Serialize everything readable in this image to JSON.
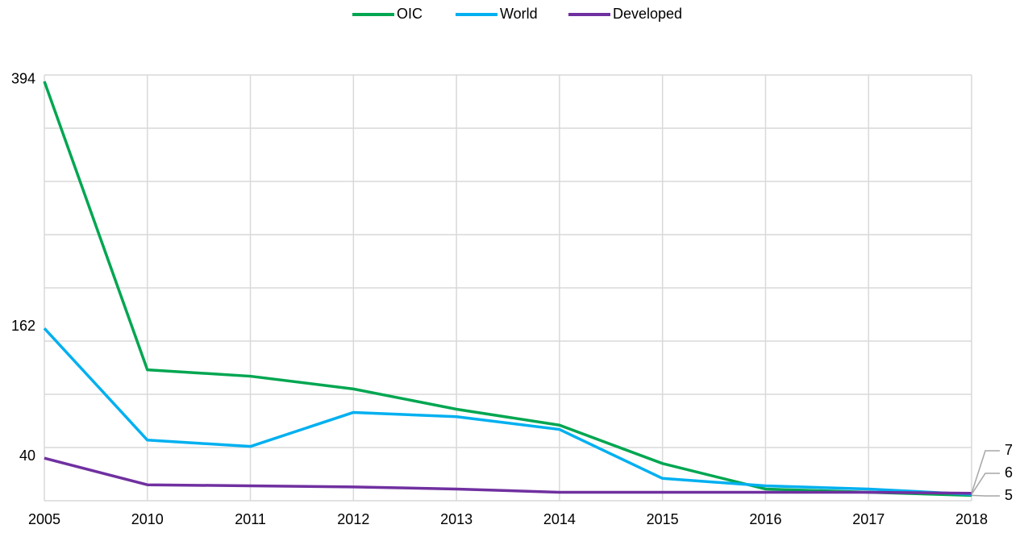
{
  "chart_data": {
    "type": "line",
    "categories": [
      "2005",
      "2010",
      "2011",
      "2012",
      "2013",
      "2014",
      "2015",
      "2016",
      "2017",
      "2018"
    ],
    "series": [
      {
        "name": "OIC",
        "color": "#00a651",
        "values": [
          394,
          123,
          117,
          105,
          86,
          71,
          35,
          11,
          8,
          5
        ]
      },
      {
        "name": "World",
        "color": "#00b0f0",
        "values": [
          162,
          57,
          51,
          83,
          79,
          67,
          21,
          14,
          11,
          6
        ]
      },
      {
        "name": "Developed",
        "color": "#7030a0",
        "values": [
          40,
          15,
          14,
          13,
          11,
          8,
          8,
          8,
          8,
          7
        ]
      }
    ],
    "ylim": [
      0,
      400
    ],
    "yticks": [
      0,
      50,
      100,
      150,
      200,
      250,
      300,
      350,
      400
    ],
    "show_ytick_labels": false,
    "grid": true,
    "legend": "top"
  }
}
